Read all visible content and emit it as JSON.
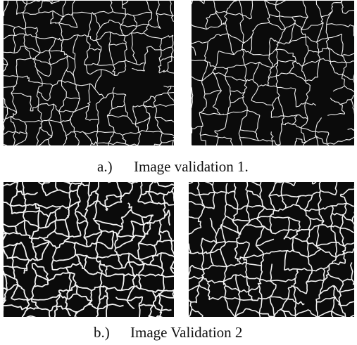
{
  "figure": {
    "rows": [
      {
        "label": "a.)",
        "caption": "Image validation 1."
      },
      {
        "label": "b.)",
        "caption": "Image Validation 2"
      }
    ]
  }
}
